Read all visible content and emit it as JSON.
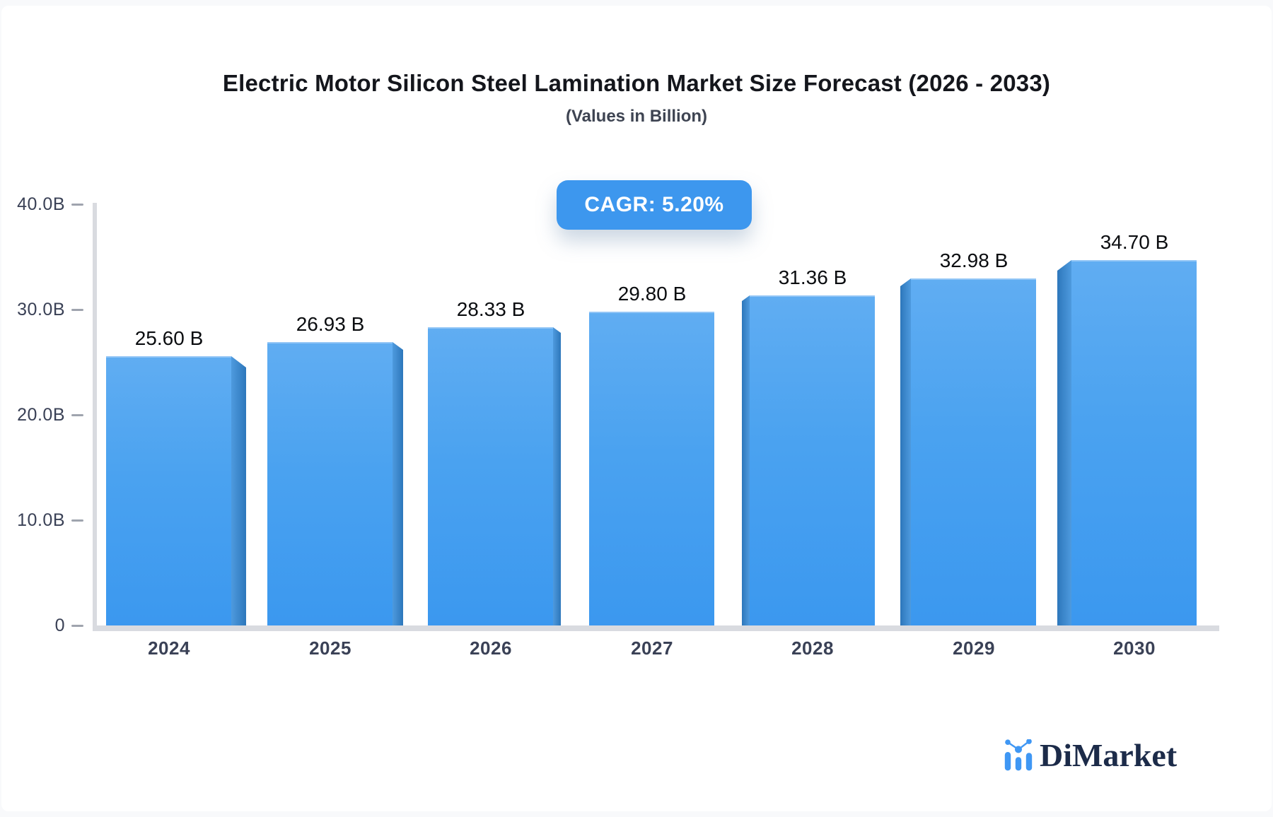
{
  "page": {
    "background": "#f8f9fb",
    "card_background": "#ffffff"
  },
  "header": {
    "title": "Electric Motor Silicon Steel Lamination Market Size Forecast (2026 - 2033)",
    "subtitle": "(Values in Billion)"
  },
  "badge": {
    "label": "CAGR: 5.20%",
    "background": "#3d97ee",
    "text_color": "#ffffff"
  },
  "chart_data": {
    "type": "bar",
    "title": "Electric Motor Silicon Steel Lamination Market Size Forecast (2026 - 2033)",
    "subtitle": "(Values in Billion)",
    "cagr_label": "CAGR: 5.20%",
    "categories": [
      "2024",
      "2025",
      "2026",
      "2027",
      "2028",
      "2029",
      "2030"
    ],
    "values": [
      25.6,
      26.93,
      28.33,
      29.8,
      31.36,
      32.98,
      34.7
    ],
    "value_labels": [
      "25.60 B",
      "26.93 B",
      "28.33 B",
      "29.80 B",
      "31.36 B",
      "32.98 B",
      "34.70 B"
    ],
    "unit": "Billion",
    "xlabel": "",
    "ylabel": "",
    "ylim": [
      0,
      40
    ],
    "yticks": [
      {
        "value": 0,
        "label": "0"
      },
      {
        "value": 10,
        "label": "10.0B"
      },
      {
        "value": 20,
        "label": "20.0B"
      },
      {
        "value": 30,
        "label": "30.0B"
      },
      {
        "value": 40,
        "label": "40.0B"
      }
    ],
    "grid": "off",
    "legend": "none",
    "bar_style": "3d-perspective",
    "colors": {
      "bar_face_top": "#60adf2",
      "bar_face_bottom": "#3b98ef",
      "bar_side": "#2d77bb",
      "axis": "#d9dbe0",
      "tick_text": "#3a4156",
      "value_label_text": "#0b0d10",
      "badge": "#3d97ee"
    }
  },
  "brand": {
    "name": "DiMarket",
    "icon": "mini-bar-line-chart-icon",
    "accent": "#3f97f4",
    "navy": "#1c2b49"
  }
}
